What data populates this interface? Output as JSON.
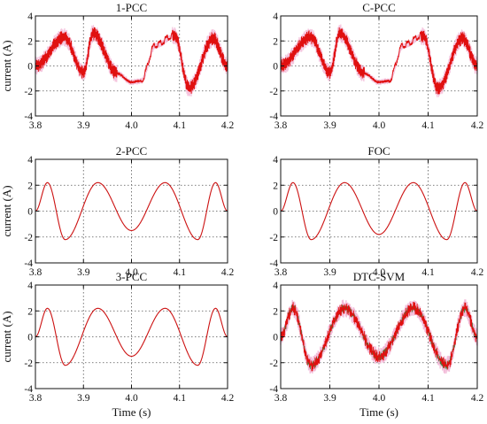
{
  "figure": {
    "colors": {
      "trace": "#cc1111",
      "ripple": "#e01010",
      "envelope": "#f2b6d6",
      "noise": "#2a7a2a"
    }
  },
  "chart_data": [
    {
      "type": "line",
      "title": "1-PCC",
      "ylabel": "current (A)",
      "xlabel": "",
      "xlim": [
        3.8,
        4.2
      ],
      "ylim": [
        -4,
        4
      ],
      "xticks": [
        "3.8",
        "3.9",
        "4.0",
        "4.1",
        "4.2"
      ],
      "yticks": [
        "4",
        "2",
        "0",
        "-2",
        "-4"
      ],
      "grid": true,
      "variant": "ripple-step",
      "series": [
        {
          "x": [
            3.8,
            3.86,
            3.9,
            3.92,
            3.97,
            4.0,
            4.02,
            4.05,
            4.09,
            4.12,
            4.17,
            4.2
          ],
          "values": [
            0,
            2.3,
            -0.5,
            2.6,
            -0.6,
            -1.3,
            -1.2,
            1.6,
            2.4,
            -1.8,
            2.2,
            0
          ]
        }
      ]
    },
    {
      "type": "line",
      "title": "C-PCC",
      "ylabel": "",
      "xlabel": "",
      "xlim": [
        3.8,
        4.2
      ],
      "ylim": [
        -4,
        4
      ],
      "xticks": [
        "3.8",
        "3.9",
        "4.0",
        "4.1",
        "4.2"
      ],
      "yticks": [
        "4",
        "2",
        "0",
        "-2",
        "-4"
      ],
      "grid": true,
      "variant": "ripple-step",
      "series": [
        {
          "x": [
            3.8,
            3.86,
            3.9,
            3.92,
            3.97,
            4.0,
            4.02,
            4.05,
            4.09,
            4.12,
            4.17,
            4.2
          ],
          "values": [
            0,
            2.3,
            -0.5,
            2.6,
            -0.6,
            -1.3,
            -1.2,
            1.6,
            2.4,
            -1.8,
            2.2,
            0
          ]
        }
      ]
    },
    {
      "type": "line",
      "title": "2-PCC",
      "ylabel": "current (A)",
      "xlabel": "",
      "xlim": [
        3.8,
        4.2
      ],
      "ylim": [
        -4,
        4
      ],
      "xticks": [
        "3.8",
        "3.9",
        "4.0",
        "4.1",
        "4.2"
      ],
      "yticks": [
        "4",
        "2",
        "0",
        "-2",
        "-4"
      ],
      "grid": true,
      "variant": "smooth",
      "series": [
        {
          "x": [
            3.8,
            3.825,
            3.862,
            3.93,
            4.0,
            4.07,
            4.138,
            4.175,
            4.2
          ],
          "values": [
            0,
            2.2,
            -2.2,
            2.2,
            -1.5,
            2.2,
            -2.2,
            2.2,
            0
          ]
        }
      ]
    },
    {
      "type": "line",
      "title": "FOC",
      "ylabel": "",
      "xlabel": "",
      "xlim": [
        3.8,
        4.2
      ],
      "ylim": [
        -4,
        4
      ],
      "xticks": [
        "3.8",
        "3.9",
        "4.0",
        "4.1",
        "4.2"
      ],
      "yticks": [
        "4",
        "2",
        "0",
        "-2",
        "-4"
      ],
      "grid": true,
      "variant": "smooth",
      "series": [
        {
          "x": [
            3.8,
            3.825,
            3.862,
            3.93,
            4.0,
            4.07,
            4.138,
            4.175,
            4.2
          ],
          "values": [
            0,
            2.2,
            -2.2,
            2.2,
            -1.8,
            2.2,
            -2.2,
            2.2,
            0
          ]
        }
      ]
    },
    {
      "type": "line",
      "title": "3-PCC",
      "ylabel": "current (A)",
      "xlabel": "Time (s)",
      "xlim": [
        3.8,
        4.2
      ],
      "ylim": [
        -4,
        4
      ],
      "xticks": [
        "3.8",
        "3.9",
        "4.0",
        "4.1",
        "4.2"
      ],
      "yticks": [
        "4",
        "2",
        "0",
        "-2",
        "-4"
      ],
      "grid": true,
      "variant": "smooth",
      "series": [
        {
          "x": [
            3.8,
            3.825,
            3.862,
            3.93,
            4.0,
            4.07,
            4.138,
            4.175,
            4.2
          ],
          "values": [
            0,
            2.2,
            -2.2,
            2.2,
            -1.5,
            2.2,
            -2.2,
            2.2,
            0
          ]
        }
      ]
    },
    {
      "type": "line",
      "title": "DTC-SVM",
      "ylabel": "",
      "xlabel": "Time (s)",
      "xlim": [
        3.8,
        4.2
      ],
      "ylim": [
        -4,
        4
      ],
      "xticks": [
        "3.8",
        "3.9",
        "4.0",
        "4.1",
        "4.2"
      ],
      "yticks": [
        "4",
        "2",
        "0",
        "-2",
        "-4"
      ],
      "grid": true,
      "variant": "noisy",
      "series": [
        {
          "x": [
            3.8,
            3.825,
            3.862,
            3.93,
            4.0,
            4.07,
            4.138,
            4.175,
            4.2
          ],
          "values": [
            0,
            2.2,
            -2.2,
            2.2,
            -1.5,
            2.2,
            -2.2,
            2.2,
            0
          ]
        }
      ]
    }
  ]
}
